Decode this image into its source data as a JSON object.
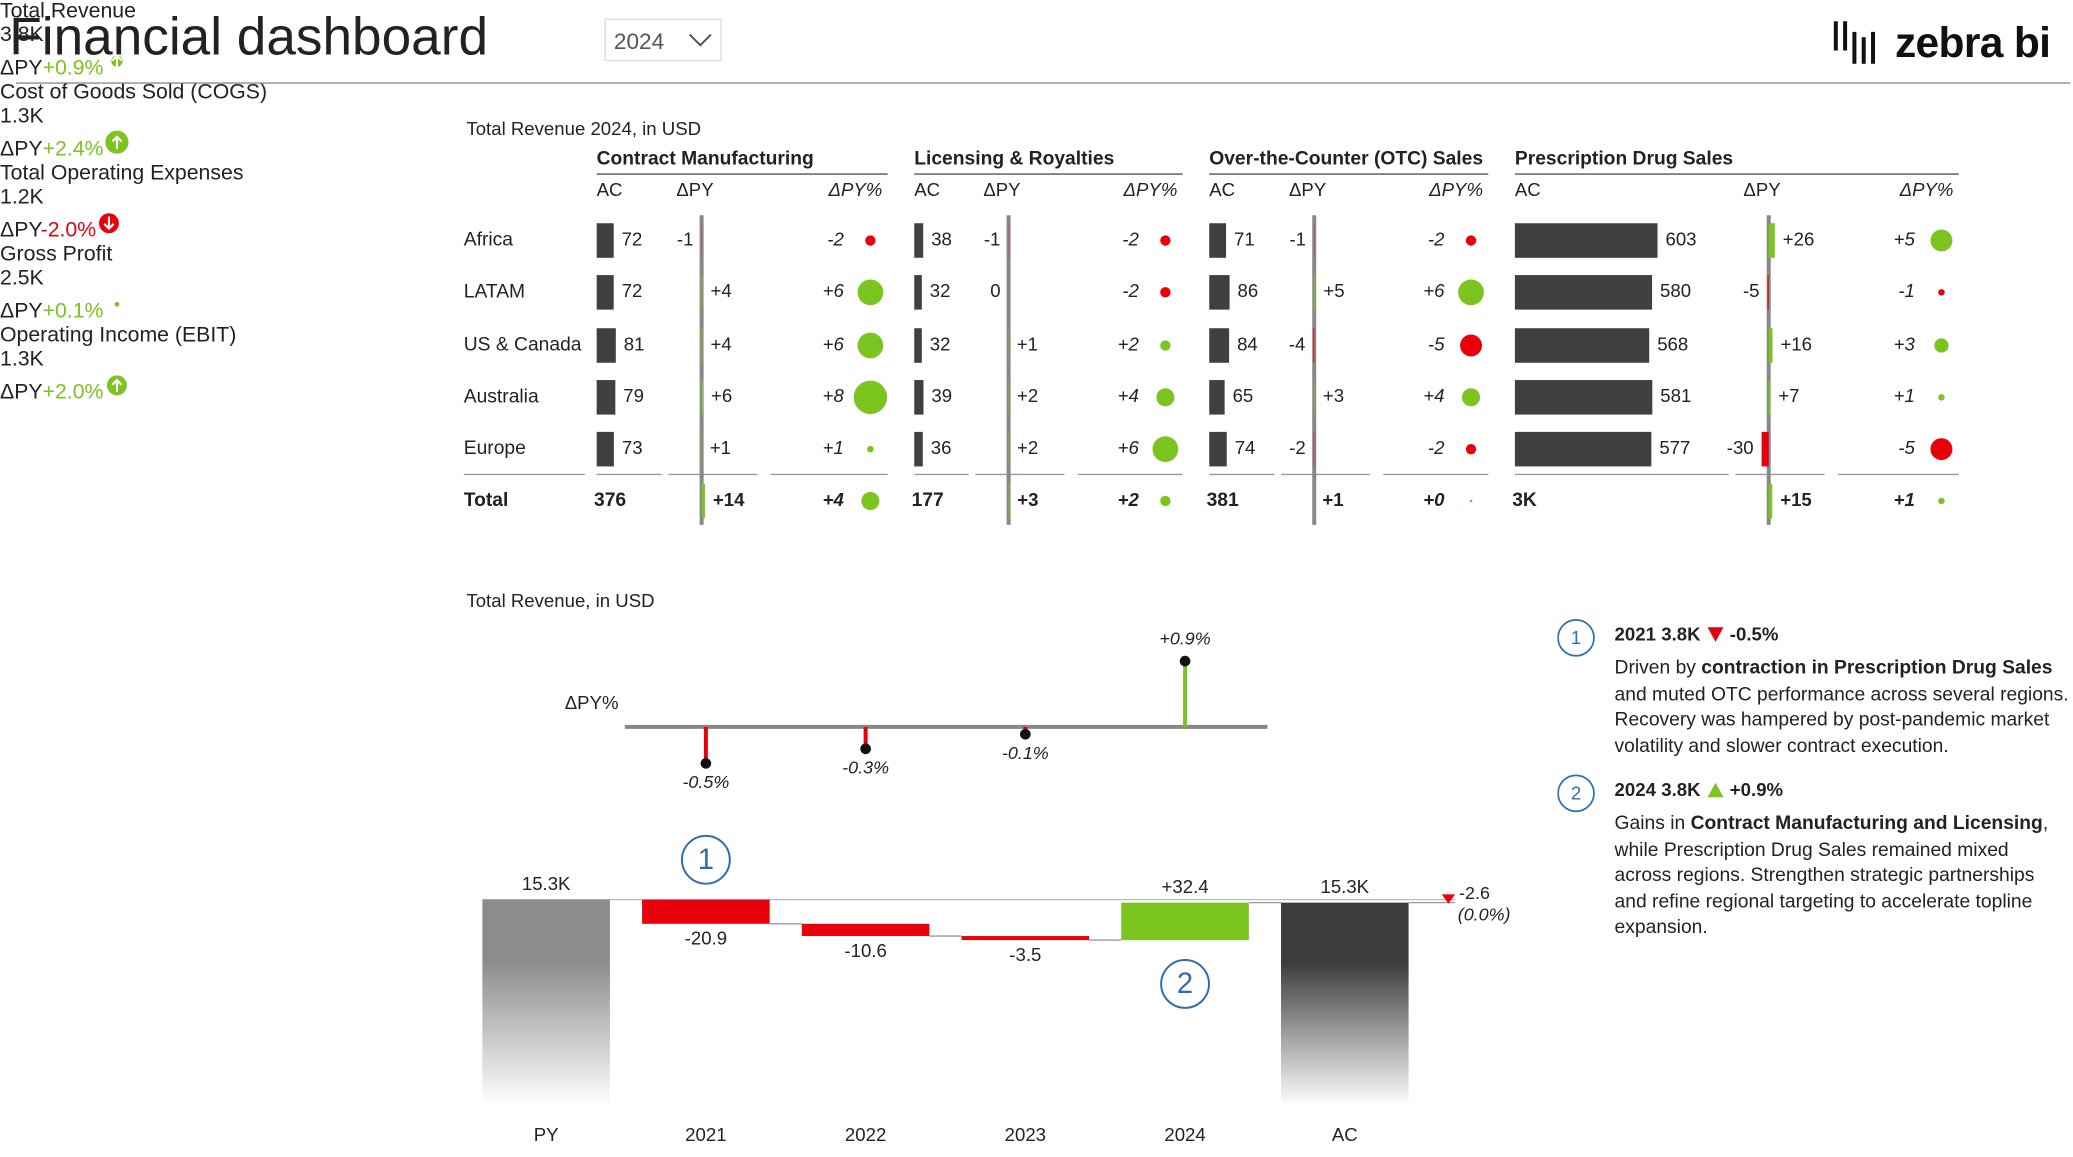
{
  "header": {
    "title": "Financial dashboard",
    "year_select": "2024",
    "logo": "zebra bi"
  },
  "colors": {
    "positive": "#7cc41f",
    "negative": "#e8000b",
    "marker": "#2f6db5"
  },
  "kpis": [
    {
      "title": "Total Revenue",
      "value": "3.8K",
      "delta_name": "ΔPY",
      "delta": 0.9,
      "delta_label": "+0.9%"
    },
    {
      "title": "Cost of Goods Sold (COGS)",
      "value": "1.3K",
      "delta_name": "ΔPY",
      "delta": 2.4,
      "delta_label": "+2.4%"
    },
    {
      "title": "Total Operating Expenses",
      "value": "1.2K",
      "delta_name": "ΔPY",
      "delta": -2.0,
      "delta_label": "-2.0%"
    },
    {
      "title": "Gross Profit",
      "value": "2.5K",
      "delta_name": "ΔPY",
      "delta": 0.1,
      "delta_label": "+0.1%"
    },
    {
      "title": "Operating Income (EBIT)",
      "value": "1.3K",
      "delta_name": "ΔPY",
      "delta": 2.0,
      "delta_label": "+2.0%"
    }
  ],
  "chart_data": [
    {
      "type": "variance_table",
      "title": "Total Revenue 2024, in USD",
      "categories": [
        "Africa",
        "LATAM",
        "US & Canada",
        "Australia",
        "Europe"
      ],
      "total_label": "Total",
      "columns": [
        "AC",
        "ΔPY",
        "ΔPY%"
      ],
      "ac_color": "#404040",
      "positive_color": "#7cc41f",
      "negative_color": "#e8000b",
      "groups": [
        {
          "name": "Contract Manufacturing",
          "ac": [
            72,
            72,
            81,
            79,
            73
          ],
          "dpy": [
            -1,
            4,
            4,
            6,
            1
          ],
          "dpy_labels": [
            "-1",
            "+4",
            "+4",
            "+6",
            "+1"
          ],
          "dpy_pct": [
            -2,
            6,
            6,
            8,
            1
          ],
          "dpy_pct_labels": [
            "-2",
            "+6",
            "+6",
            "+8",
            "+1"
          ],
          "total": {
            "ac": 376,
            "dpy": 14,
            "dpy_label": "+14",
            "dpy_pct": 4,
            "dpy_pct_label": "+4"
          }
        },
        {
          "name": "Licensing & Royalties",
          "ac": [
            38,
            32,
            32,
            39,
            36
          ],
          "dpy": [
            -1,
            0,
            1,
            2,
            2
          ],
          "dpy_labels": [
            "-1",
            "0",
            "+1",
            "+2",
            "+2"
          ],
          "dpy_pct": [
            -2,
            -2,
            2,
            4,
            6
          ],
          "dpy_pct_labels": [
            "-2",
            "-2",
            "+2",
            "+4",
            "+6"
          ],
          "total": {
            "ac": 177,
            "dpy": 3,
            "dpy_label": "+3",
            "dpy_pct": 2,
            "dpy_pct_label": "+2"
          }
        },
        {
          "name": "Over-the-Counter (OTC) Sales",
          "ac": [
            71,
            86,
            84,
            65,
            74
          ],
          "dpy": [
            -1,
            5,
            -4,
            3,
            -2
          ],
          "dpy_labels": [
            "-1",
            "+5",
            "-4",
            "+3",
            "-2"
          ],
          "dpy_pct": [
            -2,
            6,
            -5,
            4,
            -2
          ],
          "dpy_pct_labels": [
            "-2",
            "+6",
            "-5",
            "+4",
            "-2"
          ],
          "total": {
            "ac": 381,
            "dpy": 1,
            "dpy_label": "+1",
            "dpy_pct": 0,
            "dpy_pct_label": "+0"
          }
        },
        {
          "name": "Prescription Drug Sales",
          "ac": [
            603,
            580,
            568,
            581,
            577
          ],
          "dpy": [
            26,
            -5,
            16,
            7,
            -30
          ],
          "dpy_labels": [
            "+26",
            "-5",
            "+16",
            "+7",
            "-30"
          ],
          "dpy_pct": [
            5,
            -1,
            3,
            1,
            -5
          ],
          "dpy_pct_labels": [
            "+5",
            "-1",
            "+3",
            "+1",
            "-5"
          ],
          "total": {
            "ac": 2909,
            "ac_label": "3K",
            "dpy": 15,
            "dpy_label": "+15",
            "dpy_pct": 1,
            "dpy_pct_label": "+1"
          }
        }
      ]
    },
    {
      "type": "waterfall",
      "title": "Total Revenue, in USD",
      "categories": [
        "PY",
        "2021",
        "2022",
        "2023",
        "2024",
        "AC"
      ],
      "values": [
        15300,
        -20.9,
        -10.6,
        -3.5,
        32.4,
        15300
      ],
      "value_labels": [
        "15.3K",
        "-20.9",
        "-10.6",
        "-3.5",
        "+32.4",
        "15.3K"
      ],
      "difference": -2.6,
      "difference_label": "-2.6",
      "difference_pct": 0,
      "difference_pct_label": "(0.0%)",
      "delta_pct": {
        "name": "ΔPY%",
        "values": [
          null,
          -0.5,
          -0.3,
          -0.1,
          0.9,
          null
        ],
        "value_labels": [
          null,
          "-0.5%",
          "-0.3%",
          "-0.1%",
          "+0.9%",
          null
        ]
      },
      "total_colors": [
        "#8c8c8c",
        "#3d3d3d"
      ],
      "positive_color": "#7cc41f",
      "negative_color": "#e8000b",
      "annotations": [
        {
          "text": "1",
          "category": "2021"
        },
        {
          "text": "2",
          "category": "2024"
        }
      ]
    }
  ],
  "notes": [
    {
      "marker": "1",
      "year": "2021",
      "value": "3.8K",
      "delta": -0.5,
      "delta_label": "-0.5%",
      "text": [
        {
          "text": "Driven by "
        },
        {
          "text": "contraction in Prescription Drug Sales",
          "bold": true
        },
        {
          "text": " and muted OTC performance across several regions. Recovery was hampered by post-pandemic market volatility and slower contract execution."
        }
      ]
    },
    {
      "marker": "2",
      "year": "2024",
      "value": "3.8K",
      "delta": 0.9,
      "delta_label": "+0.9%",
      "text": [
        {
          "text": "Gains in "
        },
        {
          "text": "Contract Manufacturing and Licensing",
          "bold": true
        },
        {
          "text": ", while Prescription Drug Sales remained mixed across regions. Strengthen strategic partnerships and refine regional targeting to accelerate topline expansion."
        }
      ]
    }
  ]
}
